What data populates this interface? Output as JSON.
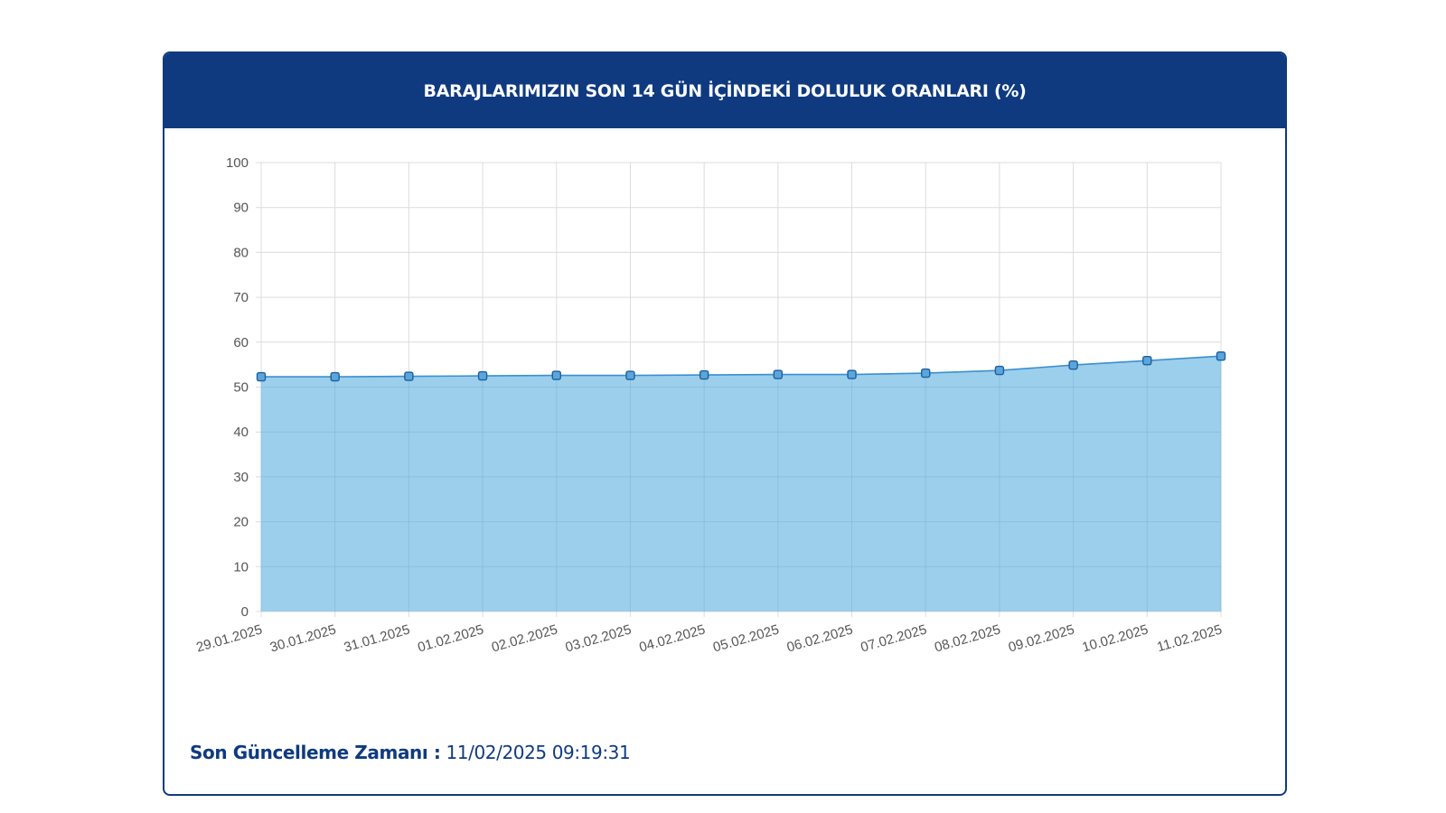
{
  "card": {
    "title": "BARAJLARIMIZIN SON 14 GÜN İÇİNDEKİ DOLULUK ORANLARI (%)"
  },
  "footer": {
    "label": "Son Güncelleme Zamanı :",
    "value": "11/02/2025 09:19:31"
  },
  "colors": {
    "header_bg": "#0f3a80",
    "line": "#3a8fd0",
    "area_fill": "#9ccfec",
    "marker_fill": "#5aa6dc",
    "marker_stroke": "#1f5f9a",
    "grid": "#dcdcdc"
  },
  "chart_data": {
    "type": "area",
    "title": "BARAJLARIMIZIN SON 14 GÜN İÇİNDEKİ DOLULUK ORANLARI (%)",
    "xlabel": "",
    "ylabel": "",
    "ylim": [
      0,
      100
    ],
    "y_ticks": [
      0,
      10,
      20,
      30,
      40,
      50,
      60,
      70,
      80,
      90,
      100
    ],
    "grid": true,
    "legend": "none",
    "categories": [
      "29.01.2025",
      "30.01.2025",
      "31.01.2025",
      "01.02.2025",
      "02.02.2025",
      "03.02.2025",
      "04.02.2025",
      "05.02.2025",
      "06.02.2025",
      "07.02.2025",
      "08.02.2025",
      "09.02.2025",
      "10.02.2025",
      "11.02.2025"
    ],
    "series": [
      {
        "values": [
          52.3,
          52.3,
          52.4,
          52.5,
          52.6,
          52.6,
          52.7,
          52.8,
          52.8,
          53.1,
          53.7,
          54.9,
          55.9,
          56.9
        ]
      }
    ]
  }
}
